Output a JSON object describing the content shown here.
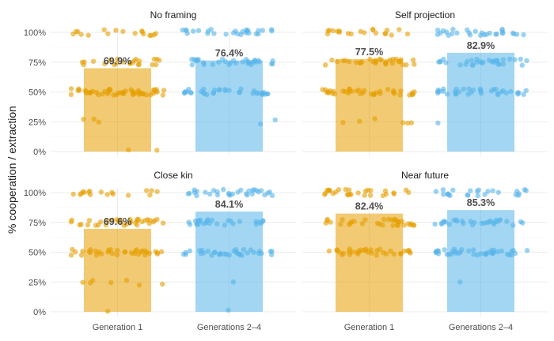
{
  "chart_data": {
    "type": "bar",
    "ylabel": "% cooperation / extraction",
    "yticks": [
      "0%",
      "25%",
      "50%",
      "75%",
      "100%"
    ],
    "ylim": [
      0,
      100
    ],
    "categories": [
      "Generation 1",
      "Generations 2–4"
    ],
    "colors": {
      "Generation 1": "#E69F00",
      "Generations 2–4": "#56B4E9"
    },
    "grid": "on",
    "facets": [
      {
        "title": "No framing",
        "values": [
          69.9,
          76.4
        ],
        "labels": [
          "69.9%",
          "76.4%"
        ]
      },
      {
        "title": "Self projection",
        "values": [
          77.5,
          82.9
        ],
        "labels": [
          "77.5%",
          "82.9%"
        ]
      },
      {
        "title": "Close kin",
        "values": [
          69.6,
          84.1
        ],
        "labels": [
          "69.6%",
          "84.1%"
        ]
      },
      {
        "title": "Near future",
        "values": [
          82.4,
          85.3
        ],
        "labels": [
          "82.4%",
          "85.3%"
        ]
      }
    ]
  }
}
